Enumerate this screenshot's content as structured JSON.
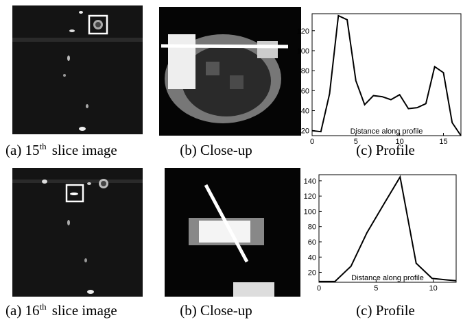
{
  "rows": [
    {
      "captions": [
        {
          "prefix": "(a) 15",
          "sup": "th",
          "rest": "slice image"
        },
        "(b) Close-up",
        "(c) Profile"
      ]
    },
    {
      "captions": [
        {
          "prefix": "(a) 16",
          "sup": "th",
          "rest": "slice image"
        },
        "(b) Close-up",
        "(c) Profile"
      ]
    }
  ],
  "chart_data": [
    {
      "type": "line",
      "xlabel": "Distance along profile",
      "color": "#000000",
      "x": [
        0,
        1,
        2,
        3,
        4,
        5,
        6,
        7,
        8,
        9,
        10,
        11,
        12,
        13,
        14,
        15,
        16,
        17
      ],
      "values": [
        20,
        19,
        57,
        135,
        131,
        70,
        46,
        55,
        54,
        51,
        56,
        42,
        43,
        47,
        84,
        78,
        28,
        15
      ],
      "xlim": [
        0,
        17
      ],
      "ylim": [
        15,
        137
      ],
      "xticks": [
        0,
        5,
        10,
        15
      ],
      "yticks": [
        20,
        40,
        60,
        80,
        100,
        120
      ]
    },
    {
      "type": "line",
      "xlabel": "Distance along profile",
      "color": "#000000",
      "x": [
        0,
        1.4,
        2.8,
        4.2,
        5.7,
        7.1,
        8.5,
        9.9,
        11.3,
        12
      ],
      "values": [
        8,
        8,
        28,
        72,
        110,
        145,
        32,
        12,
        10,
        9
      ],
      "xlim": [
        0,
        12
      ],
      "ylim": [
        7,
        148
      ],
      "xticks": [
        0,
        5,
        10
      ],
      "yticks": [
        20,
        40,
        60,
        80,
        100,
        120,
        140
      ]
    }
  ]
}
